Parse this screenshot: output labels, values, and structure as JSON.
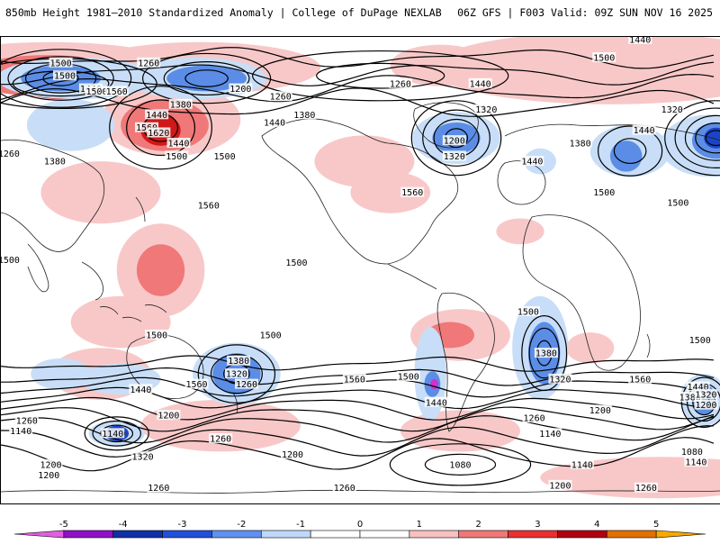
{
  "header": {
    "left_title": "850mb Height 1981–2010 Standardized Anomaly | College of DuPage NEXLAB",
    "right_title": "06Z GFS | F003 Valid: 09Z SUN NOV 16 2025"
  },
  "map": {
    "contour_labels": [
      {
        "text": "1440",
        "lon": 30,
        "lat": 89
      },
      {
        "text": "1500",
        "lon": 100,
        "lat": 80
      },
      {
        "text": "1500",
        "lon": 12,
        "lat": 82
      },
      {
        "text": "1260",
        "lon": -90,
        "lat": 72
      },
      {
        "text": "1200",
        "lon": -170,
        "lat": 70
      },
      {
        "text": "1260",
        "lon": -150,
        "lat": 67
      },
      {
        "text": "1380",
        "lon": 160,
        "lat": 64
      },
      {
        "text": "1440",
        "lon": 148,
        "lat": 60
      },
      {
        "text": "1380",
        "lon": -138,
        "lat": 60
      },
      {
        "text": "1440",
        "lon": -153,
        "lat": 57
      },
      {
        "text": "1560",
        "lon": 143,
        "lat": 55
      },
      {
        "text": "1620",
        "lon": 149,
        "lat": 53
      },
      {
        "text": "1500",
        "lon": 182,
        "lat": 44
      },
      {
        "text": "1440",
        "lon": -50,
        "lat": 72
      },
      {
        "text": "1320",
        "lon": -47,
        "lat": 62
      },
      {
        "text": "1200",
        "lon": -63,
        "lat": 50
      },
      {
        "text": "1320",
        "lon": -63,
        "lat": 44
      },
      {
        "text": "1440",
        "lon": -24,
        "lat": 42
      },
      {
        "text": "1560",
        "lon": -84,
        "lat": 30
      },
      {
        "text": "1380",
        "lon": 0,
        "lat": 49
      },
      {
        "text": "1500",
        "lon": 12,
        "lat": 30
      },
      {
        "text": "1440",
        "lon": 32,
        "lat": 54
      },
      {
        "text": "1320",
        "lon": 46,
        "lat": 62
      },
      {
        "text": "1260",
        "lon": 74,
        "lat": 45
      },
      {
        "text": "1380",
        "lon": 97,
        "lat": 42
      },
      {
        "text": "1500",
        "lon": 49,
        "lat": 26
      },
      {
        "text": "1500",
        "lon": 74,
        "lat": 4
      },
      {
        "text": "1500",
        "lon": 102,
        "lat": 75
      },
      {
        "text": "1440",
        "lon": 115,
        "lat": 70
      },
      {
        "text": "1500",
        "lon": 118,
        "lat": 69
      },
      {
        "text": "1560",
        "lon": 128,
        "lat": 69
      },
      {
        "text": "1260",
        "lon": 144,
        "lat": 80
      },
      {
        "text": "1440",
        "lon": 159,
        "lat": 49
      },
      {
        "text": "1500",
        "lon": 158,
        "lat": 44
      },
      {
        "text": "1560",
        "lon": 174,
        "lat": 25
      },
      {
        "text": "1560",
        "lon": 168,
        "lat": -44
      },
      {
        "text": "1500",
        "lon": -142,
        "lat": 3
      },
      {
        "text": "1500",
        "lon": -155,
        "lat": -25
      },
      {
        "text": "1500",
        "lon": -212,
        "lat": -25
      },
      {
        "text": "1500",
        "lon": -26,
        "lat": -16
      },
      {
        "text": "1500",
        "lon": 60,
        "lat": -27
      },
      {
        "text": "1560",
        "lon": 30,
        "lat": -42
      },
      {
        "text": "1380",
        "lon": -17,
        "lat": -32
      },
      {
        "text": "1320",
        "lon": -10,
        "lat": -42
      },
      {
        "text": "1440",
        "lon": -72,
        "lat": -51
      },
      {
        "text": "1500",
        "lon": -86,
        "lat": -41
      },
      {
        "text": "1560",
        "lon": -113,
        "lat": -42
      },
      {
        "text": "1380",
        "lon": -171,
        "lat": -35
      },
      {
        "text": "1320",
        "lon": -172,
        "lat": -40
      },
      {
        "text": "1260",
        "lon": -167,
        "lat": -44
      },
      {
        "text": "1440",
        "lon": -220,
        "lat": -46
      },
      {
        "text": "1200",
        "lon": -206,
        "lat": -56
      },
      {
        "text": "1140",
        "lon": -234,
        "lat": -63
      },
      {
        "text": "1260",
        "lon": -180,
        "lat": -65
      },
      {
        "text": "1320",
        "lon": -219,
        "lat": -72
      },
      {
        "text": "1200",
        "lon": -265,
        "lat": -75
      },
      {
        "text": "1200",
        "lon": -144,
        "lat": -71
      },
      {
        "text": "1140",
        "lon": -15,
        "lat": -63
      },
      {
        "text": "1260",
        "lon": -23,
        "lat": -57
      },
      {
        "text": "1200",
        "lon": 10,
        "lat": -54
      },
      {
        "text": "1080",
        "lon": -60,
        "lat": -75
      },
      {
        "text": "1140",
        "lon": 1,
        "lat": -75
      },
      {
        "text": "1200",
        "lon": -10,
        "lat": -83
      },
      {
        "text": "1260",
        "lon": -118,
        "lat": -84
      },
      {
        "text": "1260",
        "lon": 33,
        "lat": -84
      },
      {
        "text": "1380",
        "lon": 55,
        "lat": -49
      },
      {
        "text": "1440",
        "lon": 59,
        "lat": -45
      },
      {
        "text": "1320",
        "lon": 63,
        "lat": -48
      },
      {
        "text": "1200",
        "lon": 63,
        "lat": -52
      },
      {
        "text": "1260",
        "lon": 83,
        "lat": -58
      },
      {
        "text": "1140",
        "lon": 80,
        "lat": -62
      },
      {
        "text": "1080",
        "lon": 56,
        "lat": -70
      },
      {
        "text": "1140",
        "lon": 58,
        "lat": -74
      },
      {
        "text": "1200",
        "lon": 94,
        "lat": -79
      },
      {
        "text": "1260",
        "lon": 149,
        "lat": -84
      }
    ],
    "anomaly_regions": [
      {
        "anom": 1,
        "lon": 15,
        "lat": 78,
        "rx": 90,
        "ry": 14
      },
      {
        "anom": 1,
        "lon": -190,
        "lat": 78,
        "rx": 60,
        "ry": 10
      },
      {
        "anom": 1,
        "lon": 95,
        "lat": 80,
        "rx": 60,
        "ry": 8
      },
      {
        "anom": 1,
        "lon": -70,
        "lat": 79,
        "rx": 25,
        "ry": 8
      },
      {
        "anom": 2,
        "lon": 93,
        "lat": 75,
        "rx": 40,
        "ry": 8
      },
      {
        "anom": 3,
        "lon": 100,
        "lat": 72,
        "rx": 22,
        "ry": 6
      },
      {
        "anom": 1,
        "lon": 155,
        "lat": 58,
        "rx": 35,
        "ry": 14
      },
      {
        "anom": 2,
        "lon": 152,
        "lat": 56,
        "rx": 22,
        "ry": 10
      },
      {
        "anom": 3,
        "lon": 150,
        "lat": 54,
        "rx": 10,
        "ry": 6
      },
      {
        "anom": 1,
        "lon": -108,
        "lat": 42,
        "rx": 25,
        "ry": 10
      },
      {
        "anom": 1,
        "lon": -95,
        "lat": 30,
        "rx": 20,
        "ry": 8
      },
      {
        "anom": 1,
        "lon": -30,
        "lat": 15,
        "rx": 12,
        "ry": 5
      },
      {
        "anom": 1,
        "lon": 120,
        "lat": 30,
        "rx": 30,
        "ry": 12
      },
      {
        "anom": 1,
        "lon": 150,
        "lat": 0,
        "rx": 22,
        "ry": 18
      },
      {
        "anom": 2,
        "lon": 150,
        "lat": 0,
        "rx": 12,
        "ry": 10
      },
      {
        "anom": 1,
        "lon": -60,
        "lat": -25,
        "rx": 25,
        "ry": 10
      },
      {
        "anom": 2,
        "lon": -65,
        "lat": -25,
        "rx": 12,
        "ry": 5
      },
      {
        "anom": 1,
        "lon": 5,
        "lat": -30,
        "rx": 12,
        "ry": 6
      },
      {
        "anom": 1,
        "lon": -230,
        "lat": -20,
        "rx": 25,
        "ry": 10
      },
      {
        "anom": 1,
        "lon": -180,
        "lat": -60,
        "rx": 40,
        "ry": 10
      },
      {
        "anom": 1,
        "lon": 40,
        "lat": -80,
        "rx": 60,
        "ry": 8
      },
      {
        "anom": 1,
        "lon": -60,
        "lat": -62,
        "rx": 30,
        "ry": 8
      },
      {
        "anom": 1,
        "lon": 120,
        "lat": -40,
        "rx": 25,
        "ry": 10
      },
      {
        "anom": -1,
        "lon": -252,
        "lat": 74,
        "rx": 40,
        "ry": 8
      },
      {
        "anom": -2,
        "lon": -260,
        "lat": 74,
        "rx": 20,
        "ry": 5
      },
      {
        "anom": -1,
        "lon": 168,
        "lat": 74,
        "rx": 35,
        "ry": 8
      },
      {
        "anom": -2,
        "lon": 173,
        "lat": 74,
        "rx": 20,
        "ry": 5
      },
      {
        "anom": -1,
        "lon": -62,
        "lat": 51,
        "rx": 22,
        "ry": 10
      },
      {
        "anom": -2,
        "lon": -62,
        "lat": 51,
        "rx": 12,
        "ry": 6
      },
      {
        "anom": -1,
        "lon": 25,
        "lat": 46,
        "rx": 20,
        "ry": 10
      },
      {
        "anom": -2,
        "lon": 23,
        "lat": 44,
        "rx": 8,
        "ry": 6
      },
      {
        "anom": -1,
        "lon": 65,
        "lat": 48,
        "rx": 25,
        "ry": 12
      },
      {
        "anom": -2,
        "lon": 68,
        "lat": 50,
        "rx": 12,
        "ry": 7
      },
      {
        "anom": -3,
        "lon": 68,
        "lat": 51,
        "rx": 6,
        "ry": 4
      },
      {
        "anom": -1,
        "lon": 105,
        "lat": 56,
        "rx": 22,
        "ry": 10
      },
      {
        "anom": -1,
        "lon": -172,
        "lat": -40,
        "rx": 22,
        "ry": 12
      },
      {
        "anom": -2,
        "lon": -172,
        "lat": -40,
        "rx": 12,
        "ry": 8
      },
      {
        "anom": -1,
        "lon": -20,
        "lat": -30,
        "rx": 14,
        "ry": 20
      },
      {
        "anom": -2,
        "lon": -18,
        "lat": -32,
        "rx": 8,
        "ry": 12
      },
      {
        "anom": -1,
        "lon": -75,
        "lat": -40,
        "rx": 8,
        "ry": 18
      },
      {
        "anom": -2,
        "lon": -74,
        "lat": -44,
        "rx": 4,
        "ry": 5
      },
      {
        "anom": -5,
        "lon": -73,
        "lat": -44,
        "rx": 2,
        "ry": 2
      },
      {
        "anom": -1,
        "lon": 62,
        "lat": -50,
        "rx": 12,
        "ry": 10
      },
      {
        "anom": -2,
        "lon": 62,
        "lat": -50,
        "rx": 6,
        "ry": 6
      },
      {
        "anom": -1,
        "lon": -232,
        "lat": -63,
        "rx": 14,
        "ry": 5
      },
      {
        "anom": -3,
        "lon": -232,
        "lat": -63,
        "rx": 6,
        "ry": 3
      },
      {
        "anom": -1,
        "lon": 130,
        "lat": -42,
        "rx": 20,
        "ry": 6
      },
      {
        "anom": -1,
        "lon": -260,
        "lat": -40,
        "rx": 15,
        "ry": 6
      },
      {
        "anom": -1,
        "lon": -20,
        "lat": 42,
        "rx": 8,
        "ry": 5
      }
    ]
  },
  "colorbar": {
    "tick_labels": [
      "-5",
      "-4",
      "-3",
      "-2",
      "-1",
      "0",
      "1",
      "2",
      "3",
      "4",
      "5"
    ],
    "colors": [
      "#e060e0",
      "#9010c8",
      "#1030a8",
      "#2050d8",
      "#6090f0",
      "#c0d8f8",
      "#ffffff",
      "#ffffff",
      "#f8c0c0",
      "#f07878",
      "#e83030",
      "#b00010",
      "#e07000",
      "#f8a800"
    ]
  },
  "legend_colors": {
    "pos1": "#f8c8c8",
    "pos2": "#f07878",
    "pos3": "#d01818",
    "neg1": "#c8def8",
    "neg2": "#5b8de6",
    "neg3": "#1a44c8",
    "neg5": "#cc33cc"
  }
}
